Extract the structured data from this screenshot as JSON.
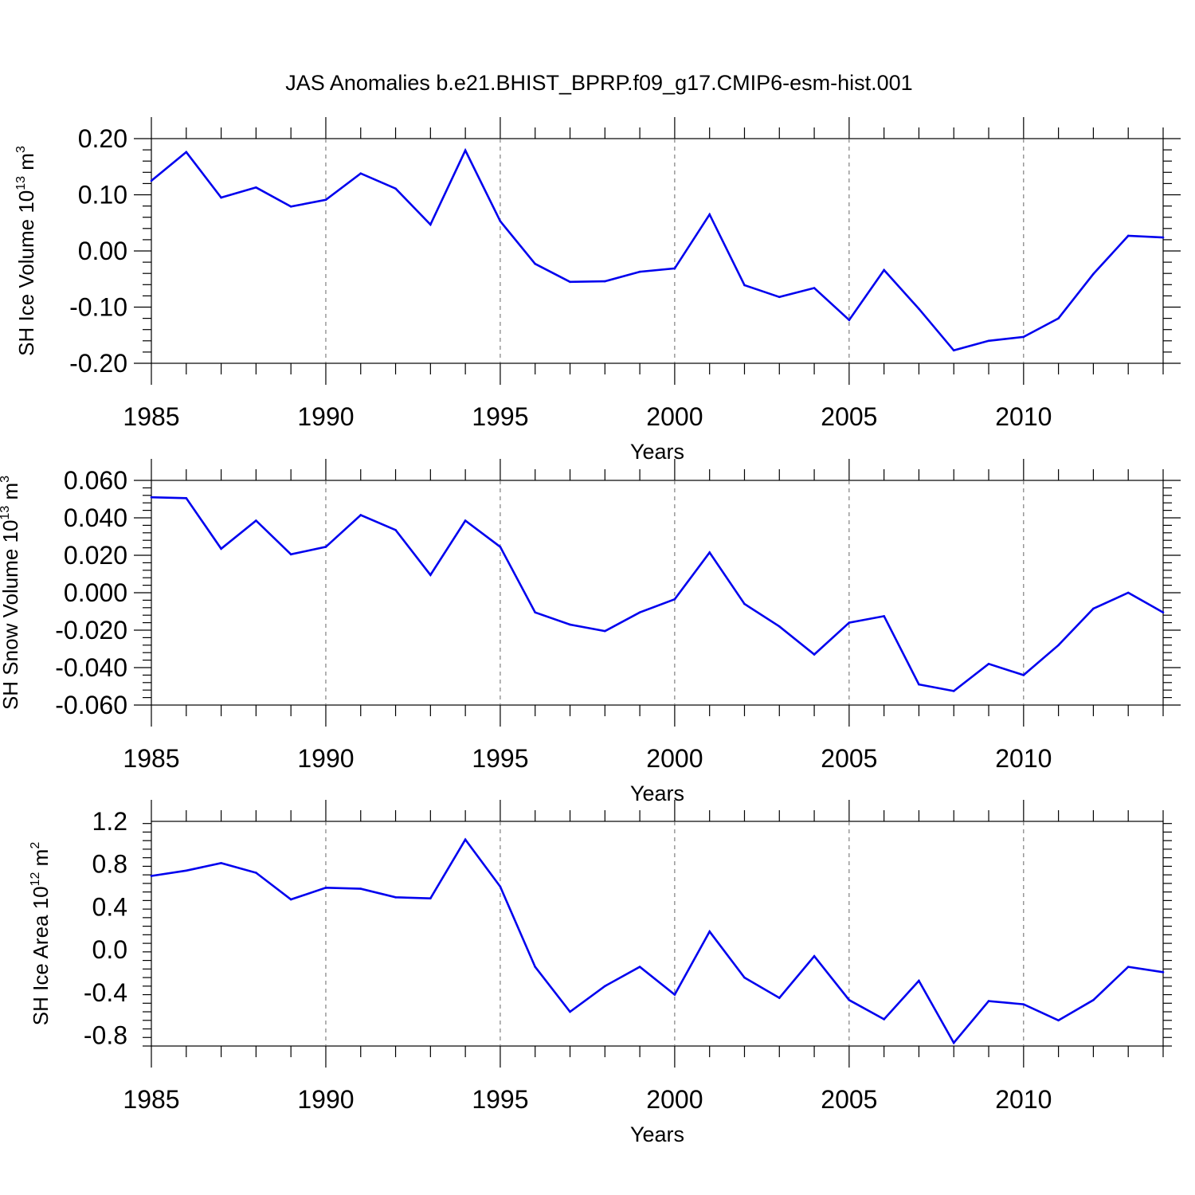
{
  "title": "JAS Anomalies b.e21.BHIST_BPRP.f09_g17.CMIP6-esm-hist.001",
  "colors": {
    "series": "#0000ee",
    "axes": "#000000",
    "grid": "#666666"
  },
  "chart_data": [
    {
      "type": "line",
      "ylabel_main": "SH Ice Volume 10",
      "ylabel_exp": "13",
      "ylabel_unit": " m",
      "ylabel_unit_exp": "3",
      "xlabel": "Years",
      "xlim": [
        1985,
        2014
      ],
      "ylim": [
        -0.2,
        0.2
      ],
      "yticks": [
        -0.2,
        -0.1,
        0.0,
        0.1,
        0.2
      ],
      "ytick_labels": [
        "-0.20",
        "-0.10",
        "0.00",
        "0.10",
        "0.20"
      ],
      "xticks": [
        1985,
        1990,
        1995,
        2000,
        2005,
        2010
      ],
      "xtick_labels": [
        "1985",
        "1990",
        "1995",
        "2000",
        "2005",
        "2010"
      ],
      "x": [
        1985,
        1986,
        1987,
        1988,
        1989,
        1990,
        1991,
        1992,
        1993,
        1994,
        1995,
        1996,
        1997,
        1998,
        1999,
        2000,
        2001,
        2002,
        2003,
        2004,
        2005,
        2006,
        2007,
        2008,
        2009,
        2010,
        2011,
        2012,
        2013,
        2014
      ],
      "y": [
        0.125,
        0.176,
        0.095,
        0.113,
        0.079,
        0.091,
        0.138,
        0.111,
        0.047,
        0.179,
        0.053,
        -0.023,
        -0.055,
        -0.054,
        -0.037,
        -0.031,
        0.065,
        -0.061,
        -0.082,
        -0.066,
        -0.123,
        -0.034,
        -0.103,
        -0.177,
        -0.16,
        -0.153,
        -0.12,
        -0.041,
        0.027,
        0.024
      ]
    },
    {
      "type": "line",
      "ylabel_main": "SH Snow Volume 10",
      "ylabel_exp": "13",
      "ylabel_unit": " m",
      "ylabel_unit_exp": "3",
      "xlabel": "Years",
      "xlim": [
        1985,
        2014
      ],
      "ylim": [
        -0.06,
        0.06
      ],
      "yticks": [
        -0.06,
        -0.04,
        -0.02,
        0.0,
        0.02,
        0.04,
        0.06
      ],
      "ytick_labels": [
        "-0.060",
        "-0.040",
        "-0.020",
        "0.000",
        "0.020",
        "0.040",
        "0.060"
      ],
      "xticks": [
        1985,
        1990,
        1995,
        2000,
        2005,
        2010
      ],
      "xtick_labels": [
        "1985",
        "1990",
        "1995",
        "2000",
        "2005",
        "2010"
      ],
      "x": [
        1985,
        1986,
        1987,
        1988,
        1989,
        1990,
        1991,
        1992,
        1993,
        1994,
        1995,
        1996,
        1997,
        1998,
        1999,
        2000,
        2001,
        2002,
        2003,
        2004,
        2005,
        2006,
        2007,
        2008,
        2009,
        2010,
        2011,
        2012,
        2013,
        2014
      ],
      "y": [
        0.051,
        0.0505,
        0.0235,
        0.0385,
        0.0205,
        0.0245,
        0.0415,
        0.0335,
        0.0095,
        0.0385,
        0.0245,
        -0.0105,
        -0.017,
        -0.0205,
        -0.0105,
        -0.0035,
        0.0215,
        -0.006,
        -0.018,
        -0.033,
        -0.016,
        -0.0125,
        -0.049,
        -0.0525,
        -0.038,
        -0.044,
        -0.028,
        -0.0085,
        0.0,
        -0.0105
      ]
    },
    {
      "type": "line",
      "ylabel_main": "SH Ice Area 10",
      "ylabel_exp": "12",
      "ylabel_unit": " m",
      "ylabel_unit_exp": "2",
      "xlabel": "Years",
      "xlim": [
        1985,
        2014
      ],
      "ylim": [
        -0.9,
        1.2
      ],
      "yticks": [
        -0.8,
        -0.4,
        0.0,
        0.4,
        0.8,
        1.2
      ],
      "ytick_labels": [
        "-0.8",
        "-0.4",
        "0.0",
        "0.4",
        "0.8",
        "1.2"
      ],
      "xticks": [
        1985,
        1990,
        1995,
        2000,
        2005,
        2010
      ],
      "xtick_labels": [
        "1985",
        "1990",
        "1995",
        "2000",
        "2005",
        "2010"
      ],
      "x": [
        1985,
        1986,
        1987,
        1988,
        1989,
        1990,
        1991,
        1992,
        1993,
        1994,
        1995,
        1996,
        1997,
        1998,
        1999,
        2000,
        2001,
        2002,
        2003,
        2004,
        2005,
        2006,
        2007,
        2008,
        2009,
        2010,
        2011,
        2012,
        2013,
        2014
      ],
      "y": [
        0.69,
        0.74,
        0.81,
        0.72,
        0.47,
        0.58,
        0.57,
        0.49,
        0.48,
        1.03,
        0.59,
        -0.16,
        -0.58,
        -0.34,
        -0.16,
        -0.42,
        0.17,
        -0.26,
        -0.45,
        -0.06,
        -0.47,
        -0.65,
        -0.29,
        -0.87,
        -0.48,
        -0.51,
        -0.66,
        -0.47,
        -0.16,
        -0.21
      ]
    }
  ]
}
